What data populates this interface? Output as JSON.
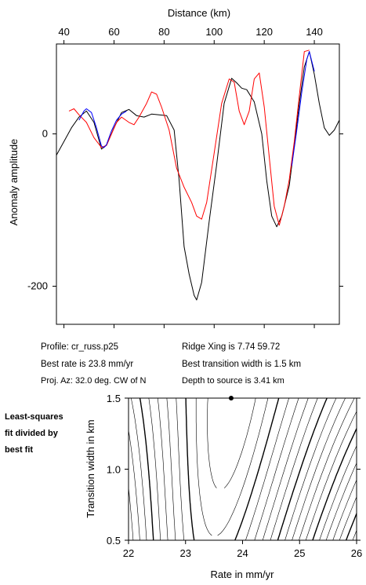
{
  "profile_chart": {
    "type": "line",
    "xlabel": "Distance (km)",
    "ylabel": "Anomaly amplitude",
    "x_ticks": [
      40,
      60,
      80,
      100,
      120,
      140
    ],
    "y_ticks": [
      0,
      -200
    ],
    "xlim": [
      37,
      150
    ],
    "ylim": [
      -250,
      118
    ]
  },
  "info": {
    "profile": "Profile: cr_russ.p25",
    "best_rate": "Best rate is 23.8 mm/yr",
    "proj_az": "Proj. Az: 32.0 deg. CW of N",
    "ridge_xing": "Ridge Xing is 7.74 59.72",
    "best_width": "Best transition width is 1.5 km",
    "depth": "Depth to source is   3.41 km"
  },
  "side_label": [
    "Least-squares",
    "fit divided by",
    "best fit"
  ],
  "contour_chart": {
    "type": "contour",
    "xlabel": "Rate in mm/yr",
    "ylabel": "Transition width in km",
    "x_ticks": [
      "22",
      "23",
      "24",
      "25",
      "26"
    ],
    "y_ticks": [
      "0.5",
      "1.0",
      "1.5"
    ],
    "xlim": [
      22,
      26
    ],
    "ylim": [
      0.5,
      1.5
    ],
    "best_fit_point": [
      23.8,
      1.5
    ]
  },
  "chart_data": [
    {
      "type": "line",
      "xlabel": "Distance (km)",
      "ylabel": "Anomaly amplitude",
      "xlim": [
        37,
        150
      ],
      "ylim": [
        -250,
        118
      ],
      "series": [
        {
          "color": "#000000",
          "points": [
            [
              37,
              -28
            ],
            [
              40,
              -10
            ],
            [
              43,
              8
            ],
            [
              46,
              22
            ],
            [
              49,
              30
            ],
            [
              52,
              15
            ],
            [
              55,
              -20
            ],
            [
              57,
              -15
            ],
            [
              60,
              8
            ],
            [
              63,
              28
            ],
            [
              66,
              32
            ],
            [
              69,
              24
            ],
            [
              72,
              22
            ],
            [
              75,
              26
            ],
            [
              78,
              25
            ],
            [
              81,
              24
            ],
            [
              84,
              5
            ],
            [
              86,
              -60
            ],
            [
              88,
              -148
            ],
            [
              90,
              -184
            ],
            [
              92,
              -212
            ],
            [
              93,
              -218
            ],
            [
              95,
              -195
            ],
            [
              98,
              -115
            ],
            [
              101,
              -40
            ],
            [
              104,
              40
            ],
            [
              107,
              73
            ],
            [
              109,
              67
            ],
            [
              111,
              60
            ],
            [
              113,
              58
            ],
            [
              116,
              42
            ],
            [
              119,
              0
            ],
            [
              121,
              -62
            ],
            [
              123,
              -108
            ],
            [
              125,
              -122
            ],
            [
              127,
              -108
            ],
            [
              130,
              -68
            ],
            [
              132,
              -15
            ],
            [
              134,
              40
            ],
            [
              136,
              88
            ],
            [
              138,
              108
            ],
            [
              140,
              78
            ],
            [
              142,
              40
            ],
            [
              144,
              8
            ],
            [
              146,
              -2
            ],
            [
              148,
              5
            ],
            [
              150,
              18
            ]
          ]
        },
        {
          "color": "#ff0000",
          "points": [
            [
              42,
              30
            ],
            [
              44,
              33
            ],
            [
              46,
              25
            ],
            [
              49,
              15
            ],
            [
              52,
              -5
            ],
            [
              55,
              -18
            ],
            [
              57,
              -15
            ],
            [
              59,
              0
            ],
            [
              61,
              15
            ],
            [
              63,
              22
            ],
            [
              66,
              15
            ],
            [
              68,
              12
            ],
            [
              70,
              22
            ],
            [
              73,
              40
            ],
            [
              75,
              55
            ],
            [
              77,
              52
            ],
            [
              79,
              35
            ],
            [
              82,
              5
            ],
            [
              85,
              -45
            ],
            [
              88,
              -70
            ],
            [
              91,
              -90
            ],
            [
              93,
              -108
            ],
            [
              95,
              -112
            ],
            [
              97,
              -90
            ],
            [
              100,
              -25
            ],
            [
              103,
              40
            ],
            [
              106,
              72
            ],
            [
              108,
              68
            ],
            [
              110,
              30
            ],
            [
              112,
              12
            ],
            [
              114,
              30
            ],
            [
              116,
              72
            ],
            [
              118,
              80
            ],
            [
              120,
              35
            ],
            [
              122,
              -30
            ],
            [
              124,
              -95
            ],
            [
              126,
              -120
            ],
            [
              128,
              -95
            ],
            [
              130,
              -60
            ],
            [
              132,
              -10
            ],
            [
              134,
              50
            ],
            [
              136,
              108
            ],
            [
              138,
              110
            ]
          ]
        },
        {
          "color": "#0000ff",
          "points": [
            [
              46,
              18
            ],
            [
              48,
              30
            ],
            [
              49,
              33
            ],
            [
              51,
              28
            ],
            [
              53,
              8
            ],
            [
              55,
              -16
            ],
            [
              56,
              -18
            ],
            [
              57,
              -14
            ],
            [
              59,
              4
            ],
            [
              61,
              18
            ],
            [
              63,
              26
            ],
            [
              65,
              30
            ],
            [
              131,
              -42
            ],
            [
              133,
              5
            ],
            [
              135,
              55
            ],
            [
              137,
              98
            ],
            [
              138,
              108
            ],
            [
              140,
              82
            ]
          ]
        }
      ]
    },
    {
      "type": "contour",
      "xlabel": "Rate in mm/yr",
      "ylabel": "Transition width in km",
      "xlim": [
        22,
        26
      ],
      "ylim": [
        0.5,
        1.5
      ],
      "best_fit": [
        23.8,
        1.5
      ]
    }
  ]
}
